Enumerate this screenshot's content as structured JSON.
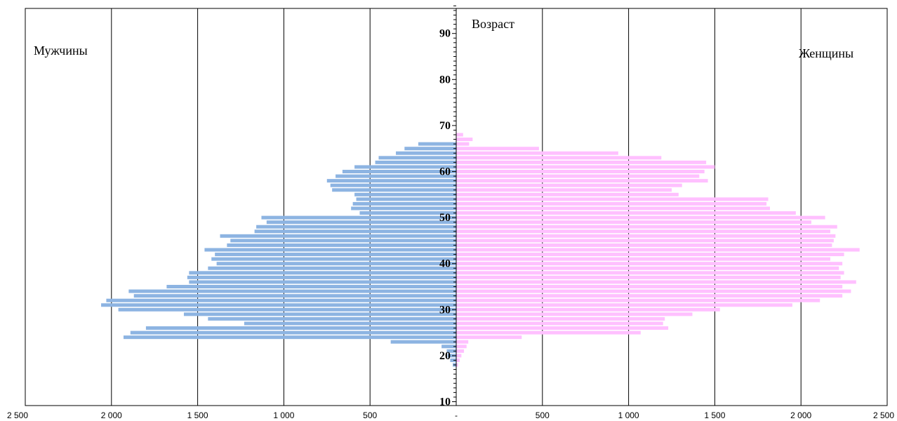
{
  "chart_data": {
    "type": "bar",
    "orientation": "horizontal",
    "subtype": "population-pyramid",
    "annotations": {
      "males": "Мужчины",
      "females": "Женщины",
      "age": "Возраст"
    },
    "x_ticks": [
      "2 500",
      "2 000",
      "1 500",
      "1 000",
      "500",
      "-",
      "500",
      "1 000",
      "1 500",
      "2 000",
      "2 500"
    ],
    "xlim": [
      -2500,
      2500
    ],
    "ylim": [
      10,
      96
    ],
    "age_ticks": [
      10,
      20,
      30,
      40,
      50,
      60,
      70,
      80,
      90
    ],
    "grid": "vertical lines at every 500",
    "ages": [
      18,
      19,
      20,
      21,
      22,
      23,
      24,
      25,
      26,
      27,
      28,
      29,
      30,
      31,
      32,
      33,
      34,
      35,
      36,
      37,
      38,
      39,
      40,
      41,
      42,
      43,
      44,
      45,
      46,
      47,
      48,
      49,
      50,
      51,
      52,
      53,
      54,
      55,
      56,
      57,
      58,
      59,
      60,
      61,
      62,
      63,
      64,
      65,
      66,
      67,
      68
    ],
    "series": [
      {
        "name": "Мужчины",
        "color": "#8DB4E2",
        "values": [
          20,
          35,
          50,
          55,
          85,
          380,
          1930,
          1890,
          1800,
          1230,
          1440,
          1580,
          1960,
          2060,
          2030,
          1870,
          1900,
          1680,
          1550,
          1560,
          1550,
          1440,
          1390,
          1420,
          1400,
          1460,
          1330,
          1310,
          1370,
          1170,
          1160,
          1100,
          1130,
          560,
          610,
          600,
          580,
          590,
          720,
          730,
          750,
          700,
          660,
          590,
          470,
          450,
          350,
          300,
          220,
          0,
          0
        ]
      },
      {
        "name": "Женщины",
        "color": "#FFC0FF",
        "values": [
          10,
          20,
          30,
          45,
          60,
          70,
          380,
          1070,
          1230,
          1200,
          1210,
          1370,
          1530,
          1950,
          2110,
          2240,
          2290,
          2240,
          2320,
          2230,
          2250,
          2220,
          2240,
          2170,
          2250,
          2340,
          2180,
          2190,
          2200,
          2170,
          2210,
          2060,
          2140,
          1970,
          1820,
          1800,
          1810,
          1290,
          1250,
          1310,
          1460,
          1410,
          1440,
          1500,
          1450,
          1190,
          940,
          480,
          75,
          95,
          40
        ]
      }
    ]
  }
}
